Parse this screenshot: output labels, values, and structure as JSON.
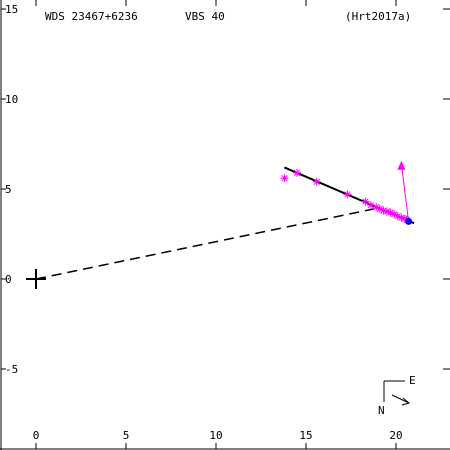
{
  "header": {
    "left": "WDS 23467+6236",
    "middle": "VBS  40",
    "right": "(Hrt2017a)"
  },
  "compass": {
    "east_label": "E",
    "north_label": "N"
  },
  "colors": {
    "axes": "#000000",
    "observations": "#ff00ff",
    "latest": "#0000ff",
    "fit": "#000000"
  },
  "chart_data": {
    "type": "scatter",
    "title": "",
    "xlabel": "",
    "ylabel": "",
    "xlim": [
      -2,
      23
    ],
    "ylim": [
      -9.5,
      15.5
    ],
    "y_inverted": true,
    "grid": false,
    "x_ticks": [
      0,
      5,
      10,
      15,
      20
    ],
    "y_ticks": [
      15,
      10,
      5,
      0,
      -5
    ],
    "x_tick_labels": [
      "0",
      "5",
      "10",
      "15",
      "20"
    ],
    "y_tick_labels": [
      "15",
      "10",
      "5",
      "0",
      "-5"
    ],
    "primary_marker": [
      0,
      0
    ],
    "observations": [
      [
        13.8,
        5.6
      ],
      [
        14.5,
        5.9
      ],
      [
        15.6,
        5.4
      ],
      [
        17.3,
        4.7
      ],
      [
        18.3,
        4.3
      ],
      [
        18.6,
        4.1
      ],
      [
        18.9,
        4.0
      ],
      [
        19.1,
        3.9
      ],
      [
        19.3,
        3.8
      ],
      [
        19.5,
        3.75
      ],
      [
        19.7,
        3.7
      ],
      [
        19.9,
        3.6
      ],
      [
        20.1,
        3.5
      ],
      [
        20.3,
        3.4
      ],
      [
        20.5,
        3.35
      ],
      [
        20.6,
        3.3
      ]
    ],
    "latest_point": [
      20.7,
      3.2
    ],
    "motion_vector": {
      "from": [
        20.7,
        3.2
      ],
      "to": [
        20.3,
        6.4
      ]
    },
    "fit_line": [
      [
        13.8,
        6.2
      ],
      [
        21.0,
        3.1
      ]
    ],
    "primary_to_fit_dashed": [
      [
        0,
        0
      ],
      [
        18.8,
        3.9
      ]
    ]
  }
}
